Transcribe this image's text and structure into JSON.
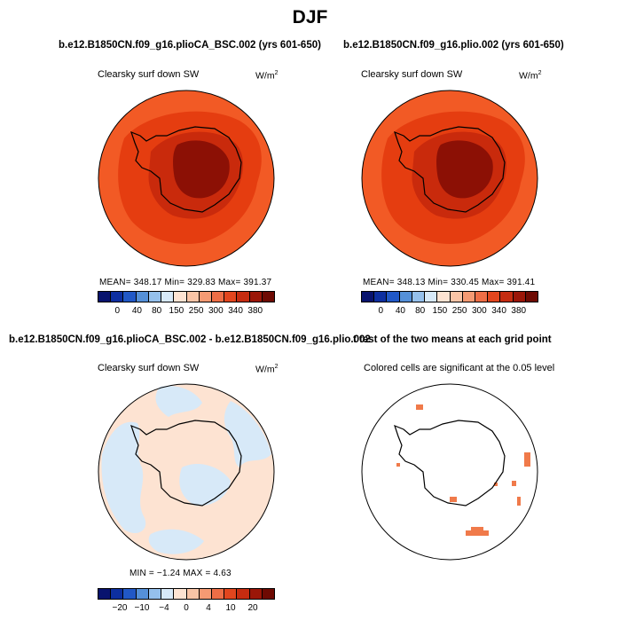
{
  "main_title": "DJF",
  "colors": {
    "full_scale": [
      "#08136e",
      "#0d2fa0",
      "#2158c6",
      "#5590d8",
      "#95c0ec",
      "#d7e9f8",
      "#fde3d2",
      "#f9c4a6",
      "#f59a73",
      "#ee6e46",
      "#e2461e",
      "#c52c10",
      "#9b1608",
      "#6e0a03"
    ],
    "diff_scale": [
      "#08136e",
      "#0d2fa0",
      "#2158c6",
      "#5590d8",
      "#95c0ec",
      "#d7e9f8",
      "#fde3d2",
      "#f9c4a6",
      "#f59a73",
      "#ee6e46",
      "#e2461e",
      "#c52c10",
      "#9b1608",
      "#6e0a03"
    ],
    "field_outer": "#f25a25",
    "field_mid": "#e53d10",
    "field_inner": "#c92a0c",
    "field_core": "#8c1005",
    "diff_pos": "#fde3d2",
    "diff_neg": "#d7e9f8",
    "signif": "#f07a4a"
  },
  "panels": {
    "top_left": {
      "title": "b.e12.B1850CN.f09_g16.plioCA_BSC.002 (yrs 601-650)",
      "field": "Clearsky surf down SW",
      "units": "W/m",
      "units_sup": "2",
      "stats": "MEAN= 348.17   Min= 329.83   Max= 391.37",
      "ticks": [
        "0",
        "40",
        "80",
        "150",
        "250",
        "300",
        "340",
        "380"
      ]
    },
    "top_right": {
      "title": "b.e12.B1850CN.f09_g16.plio.002 (yrs 601-650)",
      "field": "Clearsky surf down SW",
      "units": "W/m",
      "units_sup": "2",
      "stats": "MEAN= 348.13   Min= 330.45   Max= 391.41",
      "ticks": [
        "0",
        "40",
        "80",
        "150",
        "250",
        "300",
        "340",
        "380"
      ]
    },
    "bottom_left": {
      "title": "b.e12.B1850CN.f09_g16.plioCA_BSC.002 - b.e12.B1850CN.f09_g16.plio.002",
      "field": "Clearsky surf down SW",
      "units": "W/m",
      "units_sup": "2",
      "stats": "MIN =   −1.24  MAX =    4.63",
      "ticks": [
        "−20",
        "−10",
        "−4",
        "0",
        "4",
        "10",
        "20"
      ]
    },
    "bottom_right": {
      "title": "t test of the two means at each grid point",
      "field": "Colored cells are significant at the 0.05 level"
    }
  },
  "chart_data": [
    {
      "type": "heatmap",
      "title": "b.e12.B1850CN.f09_g16.plioCA_BSC.002 (yrs 601-650)",
      "variable": "Clearsky surf down SW",
      "units": "W/m2",
      "projection": "south polar stereographic",
      "stats": {
        "mean": 348.17,
        "min": 329.83,
        "max": 391.37
      },
      "colorbar_ticks": [
        0,
        40,
        80,
        150,
        250,
        300,
        340,
        380
      ]
    },
    {
      "type": "heatmap",
      "title": "b.e12.B1850CN.f09_g16.plio.002 (yrs 601-650)",
      "variable": "Clearsky surf down SW",
      "units": "W/m2",
      "projection": "south polar stereographic",
      "stats": {
        "mean": 348.13,
        "min": 330.45,
        "max": 391.41
      },
      "colorbar_ticks": [
        0,
        40,
        80,
        150,
        250,
        300,
        340,
        380
      ]
    },
    {
      "type": "heatmap",
      "title": "b.e12.B1850CN.f09_g16.plioCA_BSC.002 - b.e12.B1850CN.f09_g16.plio.002",
      "variable": "Clearsky surf down SW",
      "units": "W/m2",
      "projection": "south polar stereographic",
      "stats": {
        "min": -1.24,
        "max": 4.63
      },
      "colorbar_ticks": [
        -20,
        -10,
        -4,
        0,
        4,
        10,
        20
      ]
    },
    {
      "type": "heatmap",
      "title": "t test of the two means at each grid point",
      "subtitle": "Colored cells are significant at the 0.05 level",
      "significance_level": 0.05
    }
  ]
}
